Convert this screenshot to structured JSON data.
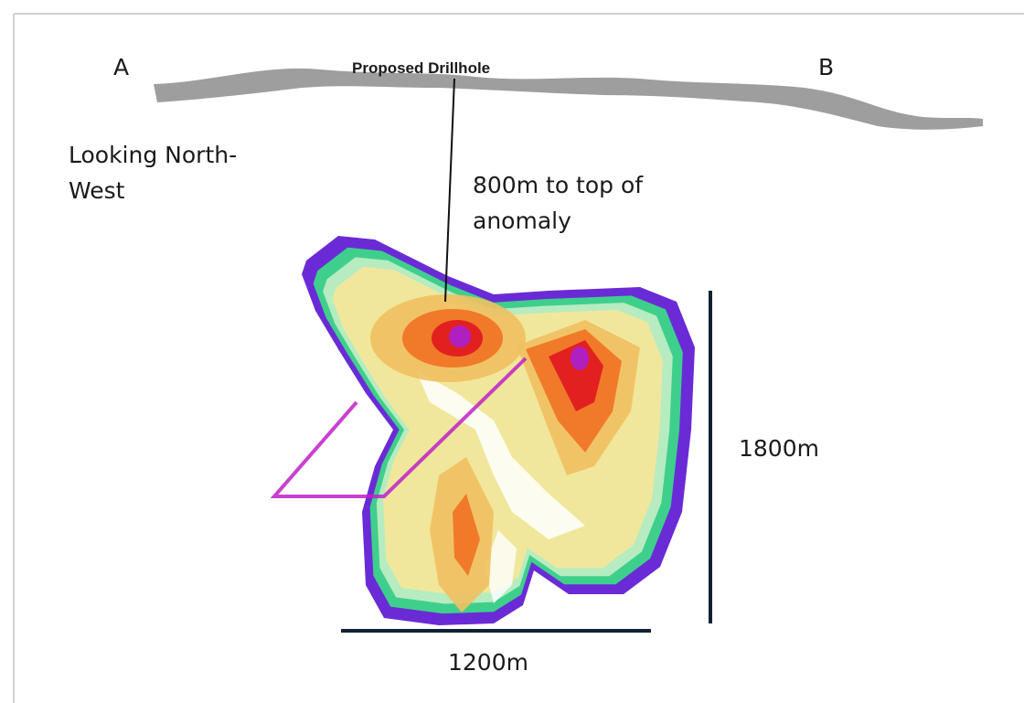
{
  "labels": {
    "section_start": "A",
    "section_end": "B",
    "drillhole": "Proposed Drillhole",
    "view_direction": [
      "Looking North-",
      "West"
    ],
    "depth_note": [
      "800m to top of",
      "anomaly"
    ],
    "height": "1800m",
    "width": "1200m"
  }
}
